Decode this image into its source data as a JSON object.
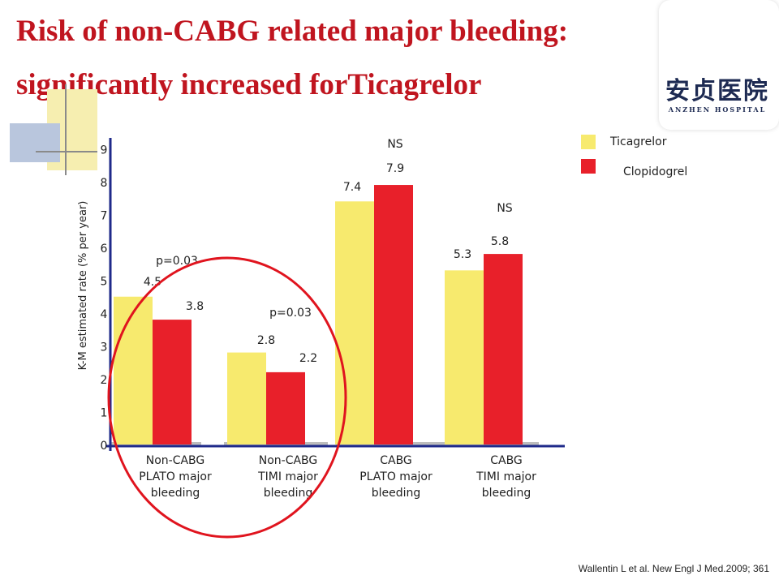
{
  "title": {
    "line1": "Risk of non-CABG related major bleeding:",
    "line2": "significantly increased forTicagrelor"
  },
  "logo": {
    "chinese": "安贞医院",
    "english": "ANZHEN HOSPITAL"
  },
  "legend": [
    {
      "label": "Ticagrelor",
      "color": "#f7ea6e"
    },
    {
      "label": "Clopidogrel",
      "color": "#e8202a"
    }
  ],
  "citation": "Wallentin L et al. New Engl J Med.2009; 361",
  "chart_data": {
    "type": "bar",
    "title": "",
    "xlabel": "",
    "ylabel": "K-M estimated rate  (% per year)",
    "ylim": [
      0,
      9
    ],
    "yticks": [
      "0",
      "1",
      "2",
      "3",
      "4",
      "5",
      "6",
      "7",
      "8",
      "9"
    ],
    "categories": [
      [
        "Non-CABG",
        "PLATO major",
        "bleeding"
      ],
      [
        "Non-CABG",
        "TIMI major",
        "bleeding"
      ],
      [
        "CABG",
        "PLATO major",
        "bleeding"
      ],
      [
        "CABG",
        "TIMI major",
        "bleeding"
      ]
    ],
    "series": [
      {
        "name": "Ticagrelor",
        "values": [
          4.5,
          2.8,
          7.4,
          5.3
        ],
        "color": "#f7ea6e"
      },
      {
        "name": "Clopidogrel",
        "values": [
          3.8,
          2.2,
          7.9,
          5.8
        ],
        "color": "#e8202a"
      }
    ],
    "value_labels": [
      [
        "4.5",
        "2.8",
        "7.4",
        "5.3"
      ],
      [
        "3.8",
        "2.2",
        "7.9",
        "5.8"
      ]
    ],
    "annotations": [
      "p=0.03",
      "p=0.03",
      "NS",
      "NS"
    ],
    "legend_position": "top-right",
    "grid": false
  }
}
